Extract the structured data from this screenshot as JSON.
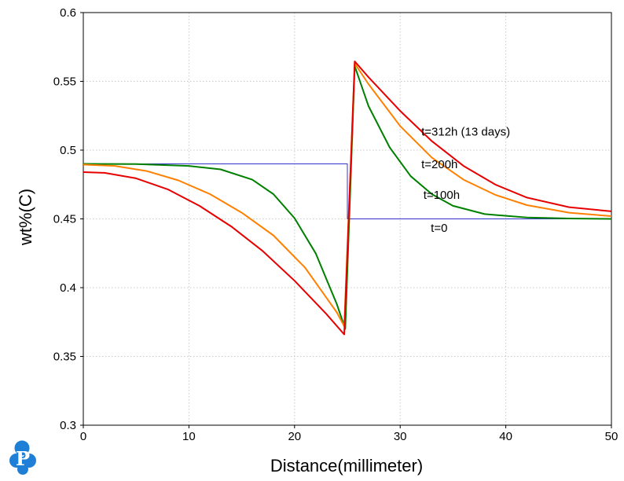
{
  "chart_data": {
    "type": "line",
    "xlabel": "Distance(millimeter)",
    "ylabel": "wt%(C)",
    "xlim": [
      0,
      50
    ],
    "ylim": [
      0.3,
      0.6
    ],
    "xticks": [
      0,
      10,
      20,
      30,
      40,
      50
    ],
    "yticks": [
      0.3,
      0.35,
      0.4,
      0.45,
      0.5,
      0.55,
      0.6
    ],
    "xtick_labels": [
      "0",
      "10",
      "20",
      "30",
      "40",
      "50"
    ],
    "ytick_labels": [
      "0.3",
      "0.35",
      "0.4",
      "0.45",
      "0.5",
      "0.55",
      "0.6"
    ],
    "grid": true,
    "series": [
      {
        "color": "#3333cc",
        "x": [
          0,
          25.0,
          25.0,
          50
        ],
        "y": [
          0.49,
          0.49,
          0.45,
          0.45
        ]
      },
      {
        "color": "#008000",
        "x": [
          0,
          5,
          10,
          13,
          16,
          18,
          20,
          22,
          24,
          24.8,
          25.7,
          27,
          29,
          31,
          33,
          35,
          38,
          42,
          46,
          50
        ],
        "y": [
          0.49,
          0.4898,
          0.4885,
          0.486,
          0.4785,
          0.468,
          0.4505,
          0.425,
          0.388,
          0.37,
          0.561,
          0.532,
          0.502,
          0.481,
          0.468,
          0.4595,
          0.4535,
          0.451,
          0.4503,
          0.45
        ]
      },
      {
        "color": "#ff8000",
        "x": [
          0,
          3,
          6,
          9,
          12,
          15,
          18,
          21,
          24,
          24.7,
          25.7,
          27,
          30,
          33,
          36,
          39,
          42,
          46,
          50
        ],
        "y": [
          0.4895,
          0.4885,
          0.4848,
          0.478,
          0.468,
          0.4545,
          0.438,
          0.4145,
          0.382,
          0.372,
          0.563,
          0.548,
          0.5175,
          0.4945,
          0.4785,
          0.4675,
          0.46,
          0.4545,
          0.452
        ]
      },
      {
        "color": "#e60000",
        "x": [
          0,
          2,
          5,
          8,
          11,
          14,
          17,
          20,
          23,
          24.7,
          25.7,
          27,
          30,
          33,
          36,
          39,
          42,
          46,
          50
        ],
        "y": [
          0.484,
          0.4835,
          0.4795,
          0.4715,
          0.4595,
          0.4445,
          0.4265,
          0.405,
          0.381,
          0.366,
          0.5645,
          0.553,
          0.5285,
          0.5065,
          0.4885,
          0.475,
          0.4655,
          0.4585,
          0.4555
        ]
      }
    ],
    "annotations": [
      {
        "text": "t=312h (13 days)",
        "x": 32.0,
        "y": 0.5105
      },
      {
        "text": "t=200h",
        "x": 32.0,
        "y": 0.487
      },
      {
        "text": "t=100h",
        "x": 32.2,
        "y": 0.4645
      },
      {
        "text": "t=0",
        "x": 32.9,
        "y": 0.4405
      }
    ]
  },
  "logo": {
    "letter": "P",
    "color": "#1f7fd6"
  }
}
